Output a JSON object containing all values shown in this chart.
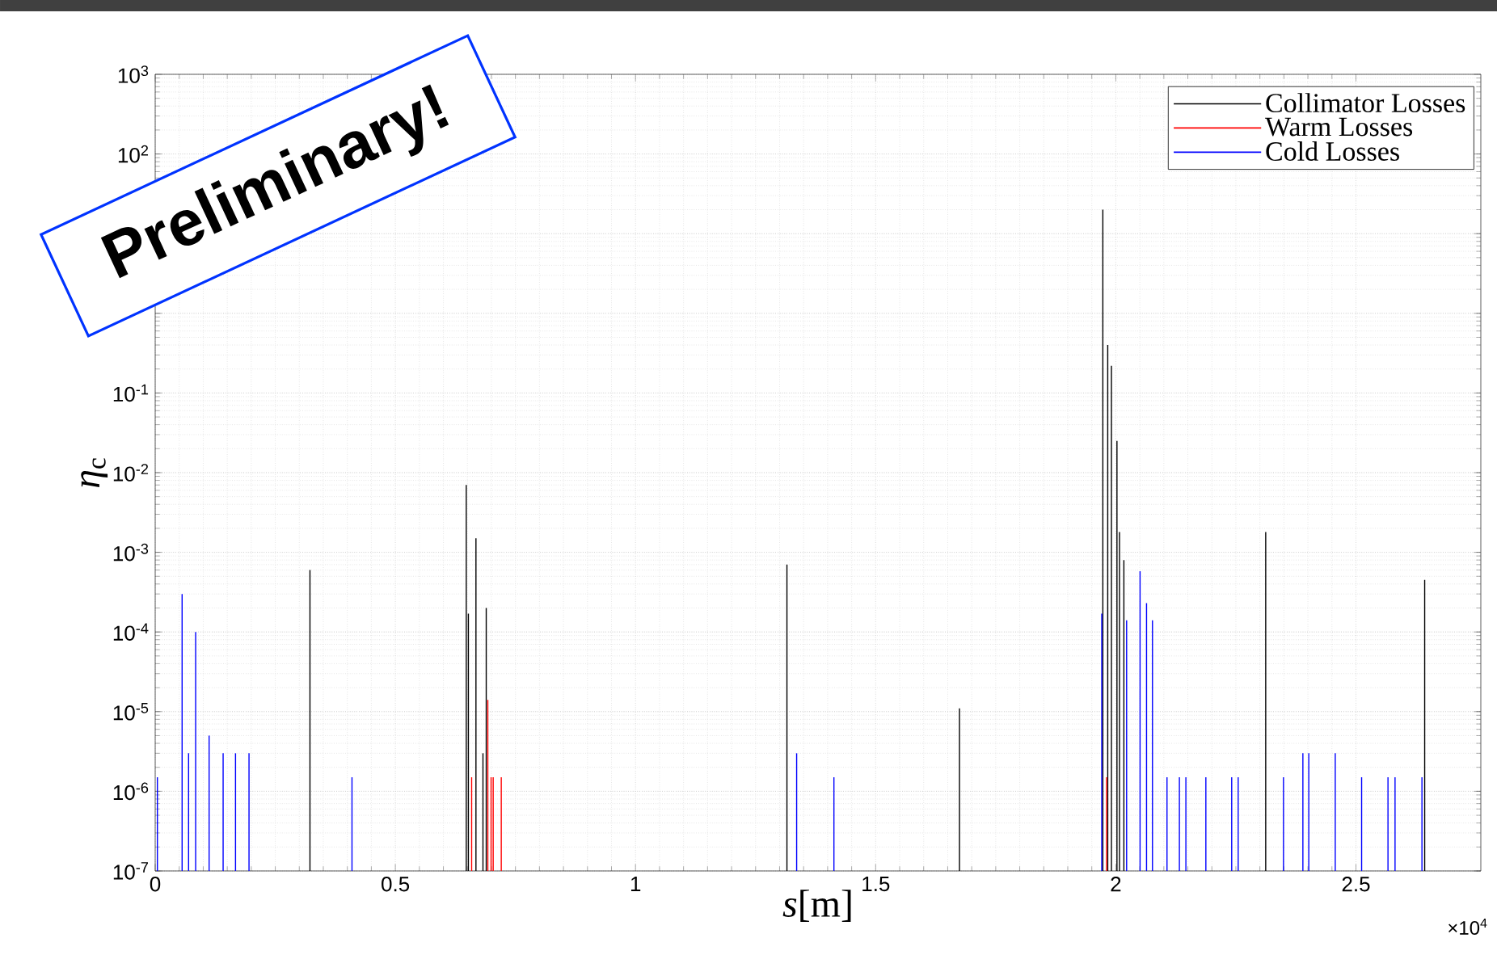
{
  "chart_data": {
    "type": "bar",
    "xlabel": "*s*[m]",
    "ylabel": "*η*$_{c}$",
    "xlim": [
      0,
      2.76
    ],
    "ylim": [
      1e-07,
      1000
    ],
    "log": "y",
    "grid": true,
    "legend": "top right",
    "xticks": [
      0,
      0.5,
      1,
      1.5,
      2,
      2.5
    ],
    "yticks": [
      {
        "value": 1e-07,
        "label": "10$^{-7}$"
      },
      {
        "value": 1e-06,
        "label": "10$^{-6}$"
      },
      {
        "value": 1e-05,
        "label": "10$^{-5}$"
      },
      {
        "value": 0.0001,
        "label": "10$^{-4}$"
      },
      {
        "value": 0.001,
        "label": "10$^{-3}$"
      },
      {
        "value": 0.01,
        "label": "10$^{-2}$"
      },
      {
        "value": 0.1,
        "label": "10$^{-1}$"
      },
      {
        "value": 1,
        "label": null
      },
      {
        "value": 10,
        "label": null
      },
      {
        "value": 100,
        "label": "10$^{2}$"
      },
      {
        "value": 1000,
        "label": "10$^{3}$"
      }
    ],
    "series": [
      {
        "name": "Collimator Losses",
        "color": "#000000",
        "x": [
          0.3222,
          0.6476,
          0.652,
          0.6678,
          0.6824,
          0.6892,
          1.3153,
          1.6745,
          1.973,
          1.9832,
          1.9909,
          2.0024,
          2.0077,
          2.0168,
          2.3121,
          2.6431
        ],
        "values": [
          0.0006,
          0.007,
          0.00017,
          0.0015,
          3e-06,
          0.0002,
          0.0007,
          1.1e-05,
          20,
          0.4,
          0.22,
          0.025,
          0.0018,
          0.0008,
          0.0018,
          0.00045
        ]
      },
      {
        "name": "Warm Losses",
        "color": "#ff0000",
        "x": [
          0.6588,
          0.6925,
          0.6993,
          0.7037,
          0.7205,
          1.9808
        ],
        "values": [
          1.5e-06,
          1.4e-05,
          1.5e-06,
          1.5e-06,
          1.5e-06,
          1.5e-06
        ]
      },
      {
        "name": "Cold Losses",
        "color": "#0000ff",
        "x": [
          0.0045,
          0.056,
          0.0695,
          0.0842,
          0.1122,
          0.1414,
          0.1672,
          0.1953,
          0.4097,
          1.3355,
          1.4131,
          1.9707,
          2.0225,
          2.0505,
          2.064,
          2.0763,
          2.1066,
          2.1324,
          2.1459,
          2.1875,
          2.2413,
          2.2548,
          2.3491,
          2.3895,
          2.4018,
          2.4569,
          2.5118,
          2.5667,
          2.5814,
          2.6374
        ],
        "values": [
          1.5e-06,
          0.0003,
          3e-06,
          0.0001,
          5e-06,
          3e-06,
          3e-06,
          3e-06,
          1.5e-06,
          3e-06,
          1.5e-06,
          0.00017,
          0.00014,
          0.00058,
          0.00023,
          0.00014,
          1.5e-06,
          1.5e-06,
          1.5e-06,
          1.5e-06,
          1.5e-06,
          1.5e-06,
          1.5e-06,
          3e-06,
          3e-06,
          3e-06,
          1.5e-06,
          1.5e-06,
          1.5e-06,
          1.5e-06
        ]
      }
    ],
    "annotations": [
      "×10$^{4}$",
      "Preliminary!"
    ]
  }
}
